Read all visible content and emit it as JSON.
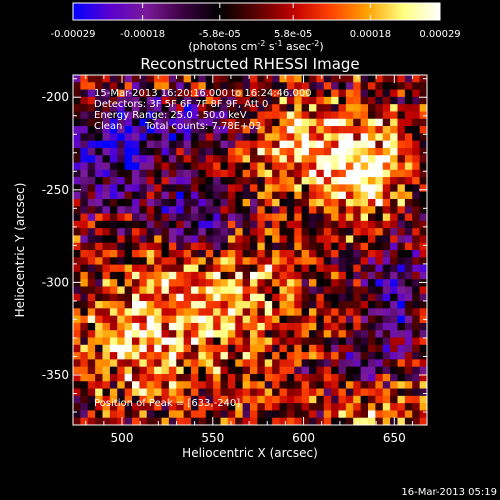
{
  "colorbar": {
    "ticks": [
      "-0.00029",
      "-0.00018",
      "-5.8e-05",
      "5.8e-05",
      "0.00018",
      "0.00029"
    ],
    "tick_values": [
      -0.00029,
      -0.00018,
      -5.8e-05,
      5.8e-05,
      0.00018,
      0.00029
    ],
    "range": [
      -0.00029,
      0.00029
    ],
    "stops": [
      "#0000ff",
      "#5a00d0",
      "#7a1a9a",
      "#3a0040",
      "#000000",
      "#5a0000",
      "#c00000",
      "#ff4000",
      "#ffa000",
      "#ffff80",
      "#ffffff"
    ],
    "units_prefix": "(photons cm",
    "units_sup1": "-2",
    "units_mid": " s",
    "units_sup2": "-1",
    "units_mid2": " asec",
    "units_sup3": "-2",
    "units_suffix": ")"
  },
  "chart_data": {
    "type": "heatmap",
    "title": "Reconstructed RHESSI Image",
    "xlabel": "Heliocentric X (arcsec)",
    "ylabel": "Heliocentric Y (arcsec)",
    "xlim": [
      473,
      668
    ],
    "ylim": [
      -377,
      -188
    ],
    "xticks": [
      500,
      550,
      600,
      650
    ],
    "yticks": [
      -200,
      -250,
      -300,
      -350
    ],
    "annotations": [
      "15-Mar-2013 16:20:16.000 to 16:24:46.000",
      "Detectors: 3F 5F 6F 7F 8F 9F, Att 0",
      "Energy Range: 25.0 - 50.0 keV",
      "Clean",
      "Total counts: 7.78E+03"
    ],
    "peak_label": "Position of Peak = [633,-240]",
    "peak": [
      633,
      -240
    ]
  },
  "footer": {
    "timestamp": "16-Mar-2013 05:19"
  }
}
